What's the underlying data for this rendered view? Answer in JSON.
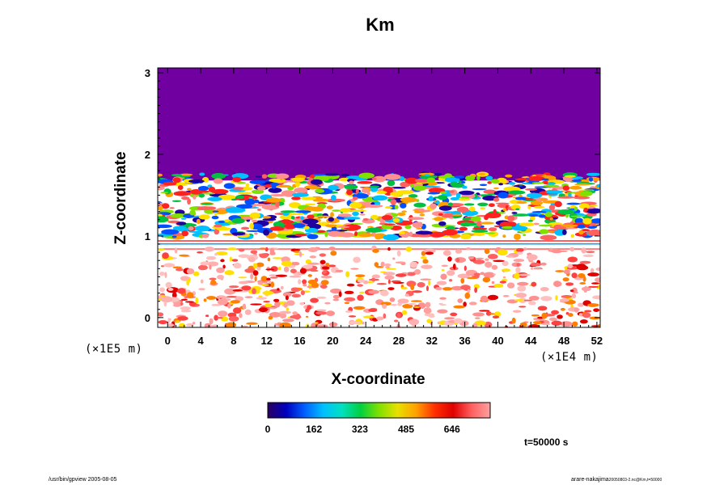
{
  "chart_data": {
    "type": "heatmap",
    "title": "Km",
    "xlabel": "X-coordinate",
    "ylabel": "Z-coordinate",
    "x_ticks": [
      0,
      4,
      8,
      12,
      16,
      20,
      24,
      28,
      32,
      36,
      40,
      44,
      48,
      52
    ],
    "y_ticks": [
      0,
      1,
      2,
      3
    ],
    "xlim": [
      -1.2,
      52.4
    ],
    "ylim": [
      -0.12,
      3.06
    ],
    "x_scale_label": "(×1E4 m)",
    "y_scale_label": "(×1E5 m)",
    "colorbar": {
      "ticks": [
        0,
        162,
        323,
        485,
        646
      ],
      "max": 780,
      "colors": [
        "#2a0060",
        "#0000c0",
        "#0060ff",
        "#00c0ff",
        "#00e0c0",
        "#00d040",
        "#80e000",
        "#e8e000",
        "#ffa000",
        "#ff3000",
        "#e00000",
        "#ff6060",
        "#ffa0a0"
      ]
    },
    "field_description": {
      "upper_region_value": 0,
      "upper_region_color": "#7000a0",
      "turbulent_layer_top_z": 1.72,
      "turbulent_layer_bottom_z": 1.0,
      "quiet_band_z": [
        0.85,
        0.95
      ],
      "lower_region_z": [
        -0.12,
        0.85
      ]
    },
    "time_label": "t=50000 s"
  },
  "footer": {
    "left": "/usr/bin/gpview 2005-08-05",
    "right_main": "arare-nakajima",
    "right_sub": "20050803-2.nc@Km,t=50000"
  }
}
